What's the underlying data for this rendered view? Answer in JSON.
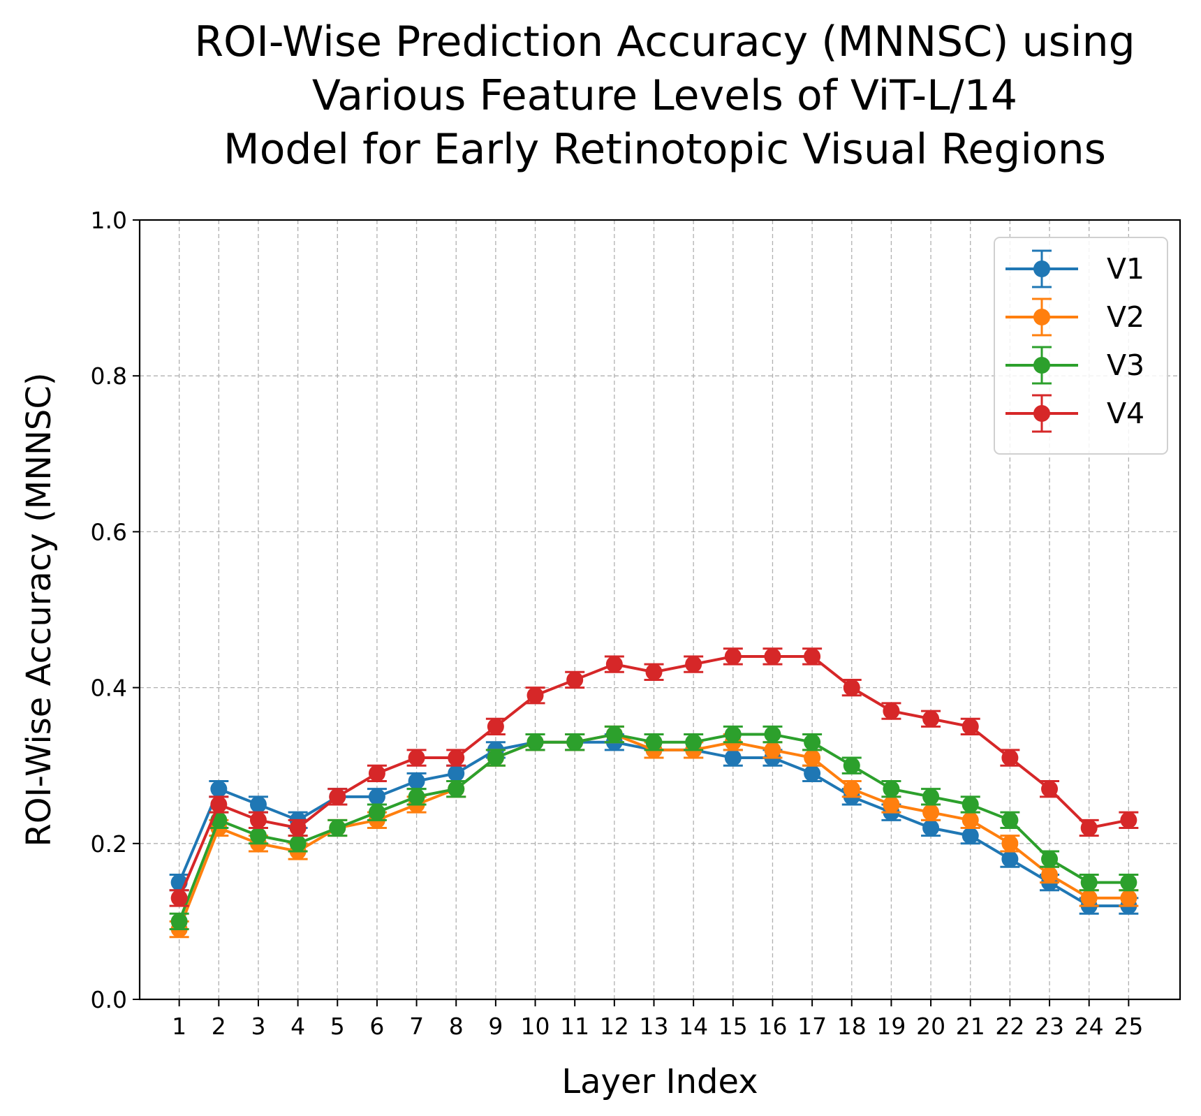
{
  "chart_data": {
    "type": "line",
    "title_lines": [
      "ROI-Wise Prediction Accuracy (MNNSC) using",
      "Various Feature Levels of ViT-L/14",
      "Model for Early Retinotopic Visual Regions"
    ],
    "xlabel": "Layer Index",
    "ylabel": "ROI-Wise Accuracy (MNNSC)",
    "x": [
      1,
      2,
      3,
      4,
      5,
      6,
      7,
      8,
      9,
      10,
      11,
      12,
      13,
      14,
      15,
      16,
      17,
      18,
      19,
      20,
      21,
      22,
      23,
      24,
      25
    ],
    "x_tick_labels": [
      "1",
      "2",
      "3",
      "4",
      "5",
      "6",
      "7",
      "8",
      "9",
      "10",
      "11",
      "12",
      "13",
      "14",
      "15",
      "16",
      "17",
      "18",
      "19",
      "20",
      "21",
      "22",
      "23",
      "24",
      "25"
    ],
    "ylim": [
      0.0,
      1.0
    ],
    "y_ticks": [
      0.0,
      0.2,
      0.4,
      0.6,
      0.8,
      1.0
    ],
    "y_tick_labels": [
      "0.0",
      "0.2",
      "0.4",
      "0.6",
      "0.8",
      "1.0"
    ],
    "grid": true,
    "legend_position": "top-right",
    "series": [
      {
        "name": "V1",
        "color": "#1f77b4",
        "values": [
          0.15,
          0.27,
          0.25,
          0.23,
          0.26,
          0.26,
          0.28,
          0.29,
          0.32,
          0.33,
          0.33,
          0.33,
          0.32,
          0.32,
          0.31,
          0.31,
          0.29,
          0.26,
          0.24,
          0.22,
          0.21,
          0.18,
          0.15,
          0.12,
          0.12
        ],
        "errors": [
          0.01,
          0.01,
          0.01,
          0.01,
          0.01,
          0.01,
          0.01,
          0.01,
          0.01,
          0.01,
          0.01,
          0.01,
          0.01,
          0.01,
          0.01,
          0.01,
          0.01,
          0.01,
          0.01,
          0.01,
          0.01,
          0.01,
          0.01,
          0.01,
          0.01
        ]
      },
      {
        "name": "V2",
        "color": "#ff7f0e",
        "values": [
          0.09,
          0.22,
          0.2,
          0.19,
          0.22,
          0.23,
          0.25,
          0.27,
          0.31,
          0.33,
          0.33,
          0.34,
          0.32,
          0.32,
          0.33,
          0.32,
          0.31,
          0.27,
          0.25,
          0.24,
          0.23,
          0.2,
          0.16,
          0.13,
          0.13
        ],
        "errors": [
          0.01,
          0.01,
          0.01,
          0.01,
          0.01,
          0.01,
          0.01,
          0.01,
          0.01,
          0.01,
          0.01,
          0.01,
          0.01,
          0.01,
          0.01,
          0.01,
          0.01,
          0.01,
          0.01,
          0.01,
          0.01,
          0.01,
          0.01,
          0.01,
          0.01
        ]
      },
      {
        "name": "V3",
        "color": "#2ca02c",
        "values": [
          0.1,
          0.23,
          0.21,
          0.2,
          0.22,
          0.24,
          0.26,
          0.27,
          0.31,
          0.33,
          0.33,
          0.34,
          0.33,
          0.33,
          0.34,
          0.34,
          0.33,
          0.3,
          0.27,
          0.26,
          0.25,
          0.23,
          0.18,
          0.15,
          0.15
        ],
        "errors": [
          0.01,
          0.01,
          0.01,
          0.01,
          0.01,
          0.01,
          0.01,
          0.01,
          0.01,
          0.01,
          0.01,
          0.01,
          0.01,
          0.01,
          0.01,
          0.01,
          0.01,
          0.01,
          0.01,
          0.01,
          0.01,
          0.01,
          0.01,
          0.01,
          0.01
        ]
      },
      {
        "name": "V4",
        "color": "#d62728",
        "values": [
          0.13,
          0.25,
          0.23,
          0.22,
          0.26,
          0.29,
          0.31,
          0.31,
          0.35,
          0.39,
          0.41,
          0.43,
          0.42,
          0.43,
          0.44,
          0.44,
          0.44,
          0.4,
          0.37,
          0.36,
          0.35,
          0.31,
          0.27,
          0.22,
          0.23
        ],
        "errors": [
          0.01,
          0.01,
          0.01,
          0.01,
          0.01,
          0.01,
          0.01,
          0.01,
          0.01,
          0.01,
          0.01,
          0.01,
          0.01,
          0.01,
          0.01,
          0.01,
          0.01,
          0.01,
          0.01,
          0.01,
          0.01,
          0.01,
          0.01,
          0.01,
          0.01
        ]
      }
    ]
  }
}
